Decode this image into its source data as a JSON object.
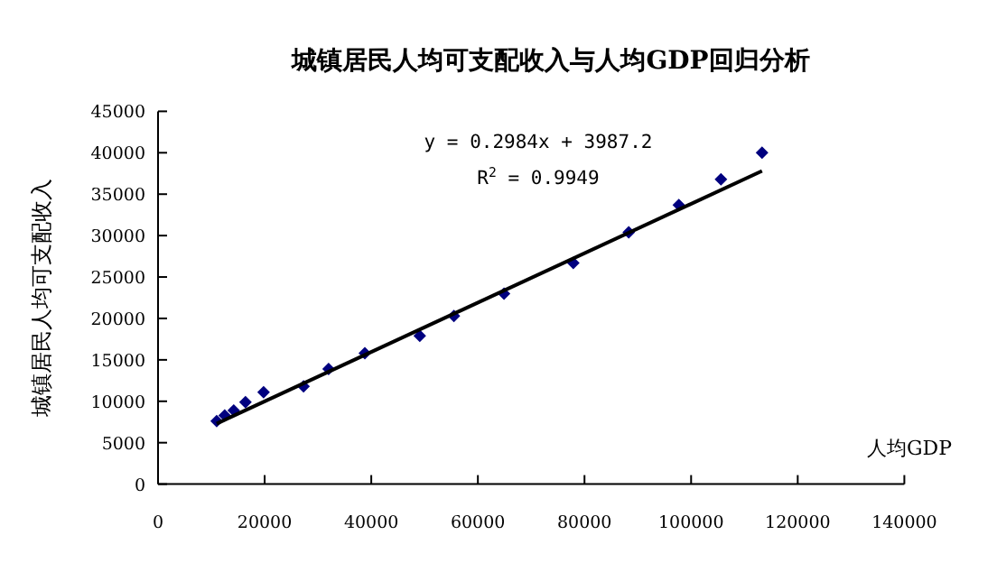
{
  "chart_data": {
    "type": "scatter",
    "title": "城镇居民人均可支配收入与人均GDP回归分析",
    "xlabel": "人均GDP",
    "ylabel": "城镇居民人均可支配收入",
    "x": [
      11000,
      12500,
      14200,
      16400,
      19800,
      27300,
      32000,
      38800,
      49100,
      55500,
      64900,
      77900,
      88300,
      97700,
      105600,
      113300
    ],
    "series": [
      {
        "color": "#00007f",
        "marker": "diamond",
        "values": [
          7600,
          8300,
          8900,
          9900,
          11100,
          11800,
          13900,
          15800,
          17900,
          20300,
          23000,
          26700,
          30400,
          33700,
          36800,
          40000
        ]
      },
      {
        "type": "line",
        "color": "#000000",
        "x": [
          11000,
          113300
        ],
        "values": [
          7300,
          37800
        ],
        "marker": "none",
        "line_style": "solid"
      }
    ],
    "annotations": [
      "y = 0.2984x + 3987.2",
      "R$^{2}$ = 0.9949"
    ],
    "xlim": [
      0,
      140000
    ],
    "xticks": [
      0,
      20000,
      40000,
      60000,
      80000,
      100000,
      120000,
      140000
    ],
    "ylim": [
      0,
      45000
    ],
    "yticks": [
      0,
      5000,
      10000,
      15000,
      20000,
      25000,
      30000,
      35000,
      40000,
      45000
    ],
    "grid": false
  }
}
